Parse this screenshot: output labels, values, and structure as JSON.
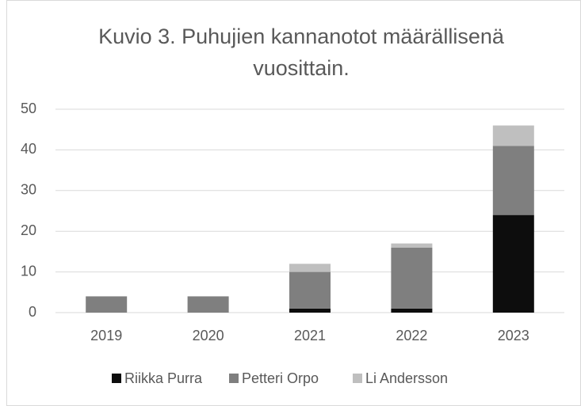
{
  "chart_data": {
    "type": "bar",
    "stacked": true,
    "title": [
      "Kuvio 3. Puhujien kannanotot määrällisenä",
      "vuosittain."
    ],
    "categories": [
      "2019",
      "2020",
      "2021",
      "2022",
      "2023"
    ],
    "series": [
      {
        "name": "Riikka Purra",
        "color": "#0d0d0d",
        "values": [
          0,
          0,
          1,
          1,
          24
        ]
      },
      {
        "name": "Petteri Orpo",
        "color": "#7f7f7f",
        "values": [
          4,
          4,
          9,
          15,
          17
        ]
      },
      {
        "name": "Li Andersson",
        "color": "#bfbfbf",
        "values": [
          0,
          0,
          2,
          1,
          5
        ]
      }
    ],
    "ylim": [
      0,
      50
    ],
    "yticks": [
      0,
      10,
      20,
      30,
      40,
      50
    ],
    "grid": true,
    "legend": "bottom"
  }
}
